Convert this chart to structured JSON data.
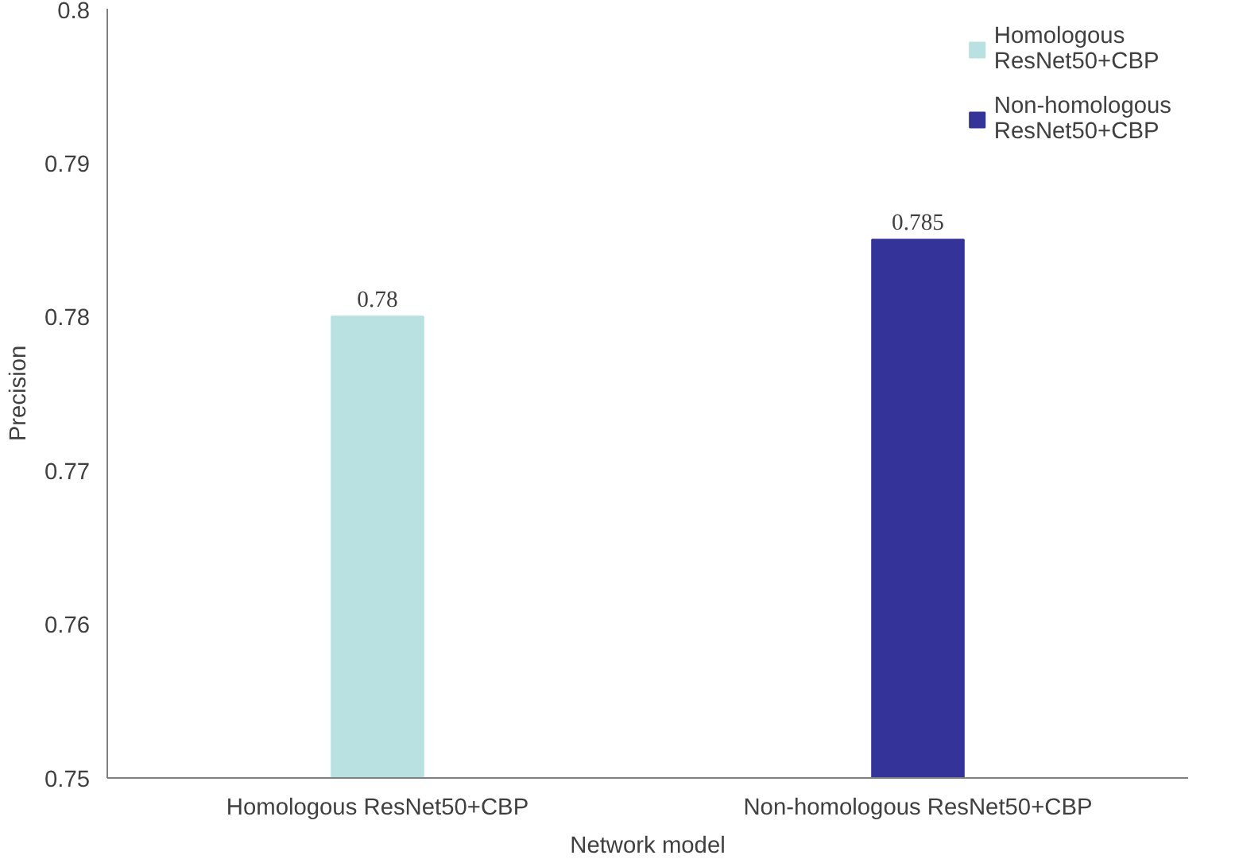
{
  "chart_data": {
    "type": "bar",
    "xlabel": "Network model",
    "ylabel": "Precision",
    "categories": [
      "Homologous ResNet50+CBP",
      "Non-homologous ResNet50+CBP"
    ],
    "series": [
      {
        "name": "Homologous ResNet50+CBP",
        "color": "#b9e1e1",
        "values": [
          0.78,
          null
        ]
      },
      {
        "name": "Non-homologous ResNet50+CBP",
        "color": "#333399",
        "values": [
          null,
          0.785
        ]
      }
    ],
    "ylim": [
      0.75,
      0.8
    ],
    "yticks": [
      0.75,
      0.76,
      0.77,
      0.78,
      0.79,
      0.8
    ],
    "data_labels": true,
    "grid": false,
    "legend": "top right"
  }
}
